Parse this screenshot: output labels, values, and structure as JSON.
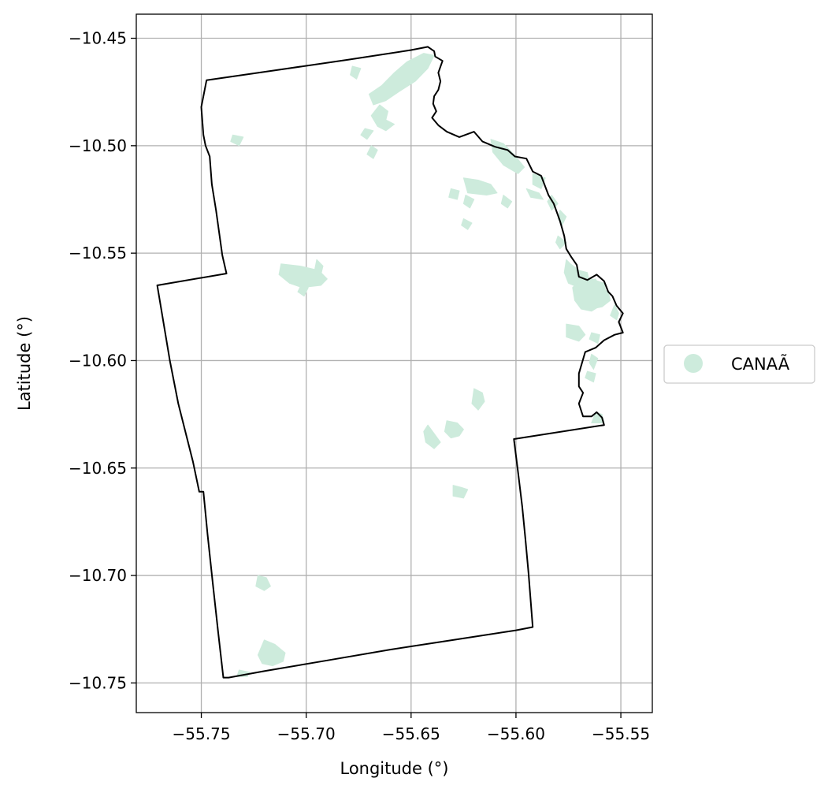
{
  "chart_data": {
    "type": "map",
    "title": "",
    "xlabel": "Longitude (°)",
    "ylabel": "Latitude (°)",
    "xlim": [
      -55.781,
      -55.535
    ],
    "ylim": [
      -10.7638,
      -10.4388
    ],
    "xticks": [
      -55.75,
      -55.7,
      -55.65,
      -55.6,
      -55.55
    ],
    "xtick_labels": [
      "−55.75",
      "−55.70",
      "−55.65",
      "−55.60",
      "−55.55"
    ],
    "yticks": [
      -10.45,
      -10.5,
      -10.55,
      -10.6,
      -10.65,
      -10.7,
      -10.75
    ],
    "ytick_labels": [
      "−10.45",
      "−10.50",
      "−10.55",
      "−10.60",
      "−10.65",
      "−10.70",
      "−10.75"
    ],
    "grid": true,
    "legend": {
      "position": "right",
      "entries": [
        {
          "label": "CANAÃ",
          "color": "#cdebdc"
        }
      ]
    },
    "colors": {
      "fill": "#cdebdc",
      "boundary": "#000000",
      "grid": "#b0b0b0"
    },
    "boundary": [
      [
        -55.7475,
        -10.4695
      ],
      [
        -55.712,
        -10.4645
      ],
      [
        -55.68,
        -10.46
      ],
      [
        -55.65,
        -10.4555
      ],
      [
        -55.642,
        -10.454
      ],
      [
        -55.639,
        -10.456
      ],
      [
        -55.6385,
        -10.4585
      ],
      [
        -55.635,
        -10.4605
      ],
      [
        -55.637,
        -10.466
      ],
      [
        -55.636,
        -10.47
      ],
      [
        -55.637,
        -10.474
      ],
      [
        -55.639,
        -10.477
      ],
      [
        -55.6395,
        -10.4805
      ],
      [
        -55.638,
        -10.484
      ],
      [
        -55.64,
        -10.487
      ],
      [
        -55.637,
        -10.4905
      ],
      [
        -55.633,
        -10.4935
      ],
      [
        -55.627,
        -10.496
      ],
      [
        -55.62,
        -10.4935
      ],
      [
        -55.616,
        -10.498
      ],
      [
        -55.61,
        -10.5005
      ],
      [
        -55.604,
        -10.502
      ],
      [
        -55.6005,
        -10.505
      ],
      [
        -55.595,
        -10.506
      ],
      [
        -55.592,
        -10.512
      ],
      [
        -55.588,
        -10.514
      ],
      [
        -55.5845,
        -10.523
      ],
      [
        -55.582,
        -10.527
      ],
      [
        -55.579,
        -10.535
      ],
      [
        -55.577,
        -10.542
      ],
      [
        -55.576,
        -10.548
      ],
      [
        -55.5735,
        -10.552
      ],
      [
        -55.571,
        -10.5555
      ],
      [
        -55.57,
        -10.561
      ],
      [
        -55.566,
        -10.5625
      ],
      [
        -55.5615,
        -10.56
      ],
      [
        -55.558,
        -10.563
      ],
      [
        -55.556,
        -10.568
      ],
      [
        -55.554,
        -10.57
      ],
      [
        -55.552,
        -10.5745
      ],
      [
        -55.549,
        -10.578
      ],
      [
        -55.551,
        -10.582
      ],
      [
        -55.549,
        -10.587
      ],
      [
        -55.553,
        -10.588
      ],
      [
        -55.558,
        -10.5905
      ],
      [
        -55.562,
        -10.594
      ],
      [
        -55.567,
        -10.596
      ],
      [
        -55.57,
        -10.606
      ],
      [
        -55.57,
        -10.612
      ],
      [
        -55.568,
        -10.615
      ],
      [
        -55.57,
        -10.62
      ],
      [
        -55.568,
        -10.626
      ],
      [
        -55.564,
        -10.626
      ],
      [
        -55.5615,
        -10.624
      ],
      [
        -55.559,
        -10.6265
      ],
      [
        -55.558,
        -10.63
      ],
      [
        -55.601,
        -10.6365
      ],
      [
        -55.599,
        -10.652
      ],
      [
        -55.597,
        -10.668
      ],
      [
        -55.5955,
        -10.683
      ],
      [
        -55.594,
        -10.699
      ],
      [
        -55.592,
        -10.724
      ],
      [
        -55.6,
        -10.7255
      ],
      [
        -55.63,
        -10.73
      ],
      [
        -55.66,
        -10.7345
      ],
      [
        -55.69,
        -10.7395
      ],
      [
        -55.72,
        -10.7445
      ],
      [
        -55.737,
        -10.7475
      ],
      [
        -55.7395,
        -10.7475
      ],
      [
        -55.742,
        -10.726
      ],
      [
        -55.7445,
        -10.704
      ],
      [
        -55.747,
        -10.681
      ],
      [
        -55.749,
        -10.661
      ],
      [
        -55.751,
        -10.661
      ],
      [
        -55.754,
        -10.647
      ],
      [
        -55.761,
        -10.62
      ],
      [
        -55.765,
        -10.6
      ],
      [
        -55.771,
        -10.565
      ],
      [
        -55.738,
        -10.5595
      ],
      [
        -55.74,
        -10.551
      ],
      [
        -55.743,
        -10.53
      ],
      [
        -55.745,
        -10.518
      ],
      [
        -55.746,
        -10.505
      ],
      [
        -55.748,
        -10.5
      ],
      [
        -55.749,
        -10.495
      ],
      [
        -55.75,
        -10.482
      ],
      [
        -55.7475,
        -10.4695
      ]
    ],
    "patches": [
      [
        [
          -55.652,
          -10.461
        ],
        [
          -55.644,
          -10.457
        ],
        [
          -55.639,
          -10.458
        ],
        [
          -55.642,
          -10.464
        ],
        [
          -55.648,
          -10.47
        ],
        [
          -55.656,
          -10.475
        ],
        [
          -55.662,
          -10.479
        ],
        [
          -55.668,
          -10.481
        ],
        [
          -55.67,
          -10.476
        ],
        [
          -55.664,
          -10.472
        ],
        [
          -55.658,
          -10.466
        ]
      ],
      [
        [
          -55.678,
          -10.463
        ],
        [
          -55.674,
          -10.464
        ],
        [
          -55.676,
          -10.469
        ],
        [
          -55.679,
          -10.467
        ]
      ],
      [
        [
          -55.665,
          -10.481
        ],
        [
          -55.661,
          -10.484
        ],
        [
          -55.662,
          -10.488
        ],
        [
          -55.658,
          -10.49
        ],
        [
          -55.662,
          -10.493
        ],
        [
          -55.666,
          -10.491
        ],
        [
          -55.669,
          -10.486
        ]
      ],
      [
        [
          -55.672,
          -10.492
        ],
        [
          -55.668,
          -10.493
        ],
        [
          -55.671,
          -10.497
        ],
        [
          -55.674,
          -10.495
        ]
      ],
      [
        [
          -55.669,
          -10.5
        ],
        [
          -55.666,
          -10.502
        ],
        [
          -55.668,
          -10.506
        ],
        [
          -55.671,
          -10.504
        ]
      ],
      [
        [
          -55.735,
          -10.495
        ],
        [
          -55.73,
          -10.496
        ],
        [
          -55.732,
          -10.5
        ],
        [
          -55.736,
          -10.498
        ]
      ],
      [
        [
          -55.612,
          -10.497
        ],
        [
          -55.606,
          -10.499
        ],
        [
          -55.601,
          -10.504
        ],
        [
          -55.596,
          -10.51
        ],
        [
          -55.599,
          -10.513
        ],
        [
          -55.606,
          -10.509
        ],
        [
          -55.611,
          -10.503
        ]
      ],
      [
        [
          -55.592,
          -10.513
        ],
        [
          -55.586,
          -10.515
        ],
        [
          -55.588,
          -10.52
        ],
        [
          -55.592,
          -10.518
        ]
      ],
      [
        [
          -55.625,
          -10.515
        ],
        [
          -55.618,
          -10.516
        ],
        [
          -55.612,
          -10.518
        ],
        [
          -55.609,
          -10.522
        ],
        [
          -55.614,
          -10.523
        ],
        [
          -55.623,
          -10.522
        ]
      ],
      [
        [
          -55.631,
          -10.52
        ],
        [
          -55.627,
          -10.521
        ],
        [
          -55.628,
          -10.525
        ],
        [
          -55.632,
          -10.524
        ]
      ],
      [
        [
          -55.595,
          -10.52
        ],
        [
          -55.589,
          -10.522
        ],
        [
          -55.587,
          -10.525
        ],
        [
          -55.593,
          -10.524
        ]
      ],
      [
        [
          -55.583,
          -10.523
        ],
        [
          -55.58,
          -10.527
        ],
        [
          -55.583,
          -10.53
        ],
        [
          -55.585,
          -10.526
        ]
      ],
      [
        [
          -55.624,
          -10.523
        ],
        [
          -55.62,
          -10.525
        ],
        [
          -55.622,
          -10.529
        ],
        [
          -55.625,
          -10.527
        ]
      ],
      [
        [
          -55.606,
          -10.523
        ],
        [
          -55.602,
          -10.526
        ],
        [
          -55.604,
          -10.529
        ],
        [
          -55.607,
          -10.527
        ]
      ],
      [
        [
          -55.579,
          -10.53
        ],
        [
          -55.576,
          -10.533
        ],
        [
          -55.578,
          -10.537
        ],
        [
          -55.58,
          -10.534
        ]
      ],
      [
        [
          -55.625,
          -10.534
        ],
        [
          -55.621,
          -10.536
        ],
        [
          -55.623,
          -10.539
        ],
        [
          -55.626,
          -10.537
        ]
      ],
      [
        [
          -55.58,
          -10.542
        ],
        [
          -55.576,
          -10.545
        ],
        [
          -55.579,
          -10.548
        ],
        [
          -55.581,
          -10.545
        ]
      ],
      [
        [
          -55.712,
          -10.555
        ],
        [
          -55.703,
          -10.556
        ],
        [
          -55.694,
          -10.558
        ],
        [
          -55.69,
          -10.562
        ],
        [
          -55.693,
          -10.565
        ],
        [
          -55.702,
          -10.566
        ],
        [
          -55.708,
          -10.564
        ],
        [
          -55.713,
          -10.56
        ]
      ],
      [
        [
          -55.695,
          -10.553
        ],
        [
          -55.692,
          -10.556
        ],
        [
          -55.693,
          -10.56
        ],
        [
          -55.696,
          -10.558
        ]
      ],
      [
        [
          -55.702,
          -10.564
        ],
        [
          -55.699,
          -10.566
        ],
        [
          -55.701,
          -10.57
        ],
        [
          -55.704,
          -10.568
        ]
      ],
      [
        [
          -55.576,
          -10.553
        ],
        [
          -55.574,
          -10.555
        ],
        [
          -55.57,
          -10.558
        ],
        [
          -55.566,
          -10.559
        ],
        [
          -55.565,
          -10.563
        ],
        [
          -55.57,
          -10.566
        ],
        [
          -55.575,
          -10.564
        ],
        [
          -55.577,
          -10.559
        ]
      ],
      [
        [
          -55.568,
          -10.561
        ],
        [
          -55.564,
          -10.562
        ],
        [
          -55.558,
          -10.564
        ],
        [
          -55.557,
          -10.569
        ],
        [
          -55.559,
          -10.574
        ],
        [
          -55.564,
          -10.577
        ],
        [
          -55.569,
          -10.576
        ],
        [
          -55.572,
          -10.572
        ],
        [
          -55.573,
          -10.566
        ]
      ],
      [
        [
          -55.568,
          -10.563
        ],
        [
          -55.562,
          -10.562
        ],
        [
          -55.56,
          -10.566
        ],
        [
          -55.556,
          -10.568
        ],
        [
          -55.555,
          -10.572
        ],
        [
          -55.559,
          -10.575
        ],
        [
          -55.564,
          -10.576
        ],
        [
          -55.569,
          -10.573
        ],
        [
          -55.57,
          -10.568
        ]
      ],
      [
        [
          -55.553,
          -10.574
        ],
        [
          -55.551,
          -10.578
        ],
        [
          -55.552,
          -10.581
        ],
        [
          -55.555,
          -10.579
        ]
      ],
      [
        [
          -55.564,
          -10.587
        ],
        [
          -55.56,
          -10.588
        ],
        [
          -55.561,
          -10.592
        ],
        [
          -55.565,
          -10.59
        ]
      ],
      [
        [
          -55.576,
          -10.583
        ],
        [
          -55.57,
          -10.584
        ],
        [
          -55.567,
          -10.588
        ],
        [
          -55.57,
          -10.591
        ],
        [
          -55.576,
          -10.589
        ]
      ],
      [
        [
          -55.564,
          -10.597
        ],
        [
          -55.561,
          -10.599
        ],
        [
          -55.563,
          -10.604
        ],
        [
          -55.565,
          -10.601
        ]
      ],
      [
        [
          -55.562,
          -10.624
        ],
        [
          -55.559,
          -10.625
        ],
        [
          -55.558,
          -10.629
        ],
        [
          -55.564,
          -10.629
        ]
      ],
      [
        [
          -55.566,
          -10.605
        ],
        [
          -55.562,
          -10.606
        ],
        [
          -55.563,
          -10.61
        ],
        [
          -55.567,
          -10.608
        ]
      ],
      [
        [
          -55.62,
          -10.613
        ],
        [
          -55.616,
          -10.615
        ],
        [
          -55.615,
          -10.619
        ],
        [
          -55.618,
          -10.623
        ],
        [
          -55.621,
          -10.62
        ]
      ],
      [
        [
          -55.633,
          -10.628
        ],
        [
          -55.628,
          -10.629
        ],
        [
          -55.625,
          -10.632
        ],
        [
          -55.627,
          -10.635
        ],
        [
          -55.631,
          -10.636
        ],
        [
          -55.634,
          -10.633
        ]
      ],
      [
        [
          -55.642,
          -10.63
        ],
        [
          -55.639,
          -10.634
        ],
        [
          -55.636,
          -10.638
        ],
        [
          -55.639,
          -10.641
        ],
        [
          -55.643,
          -10.638
        ],
        [
          -55.644,
          -10.633
        ]
      ],
      [
        [
          -55.63,
          -10.658
        ],
        [
          -55.626,
          -10.659
        ],
        [
          -55.623,
          -10.66
        ],
        [
          -55.625,
          -10.664
        ],
        [
          -55.63,
          -10.663
        ]
      ],
      [
        [
          -55.723,
          -10.7
        ],
        [
          -55.719,
          -10.701
        ],
        [
          -55.717,
          -10.705
        ],
        [
          -55.72,
          -10.707
        ],
        [
          -55.724,
          -10.705
        ]
      ],
      [
        [
          -55.72,
          -10.73
        ],
        [
          -55.715,
          -10.732
        ],
        [
          -55.71,
          -10.736
        ],
        [
          -55.711,
          -10.74
        ],
        [
          -55.716,
          -10.742
        ],
        [
          -55.721,
          -10.741
        ],
        [
          -55.723,
          -10.737
        ]
      ],
      [
        [
          -55.732,
          -10.744
        ],
        [
          -55.727,
          -10.745
        ],
        [
          -55.728,
          -10.747
        ],
        [
          -55.733,
          -10.747
        ]
      ]
    ]
  }
}
